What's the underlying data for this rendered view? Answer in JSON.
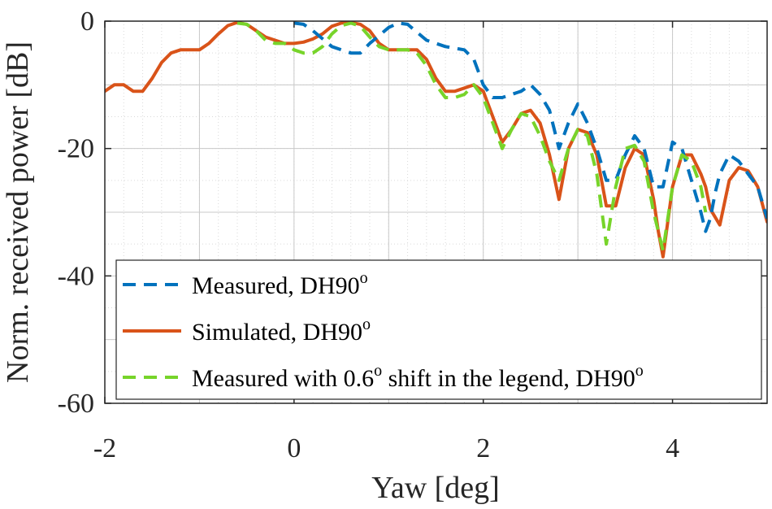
{
  "chart_data": {
    "type": "line",
    "xlabel": "Yaw [deg]",
    "ylabel": "Norm. received power [dB]",
    "xlim": [
      -2,
      5
    ],
    "ylim": [
      -60,
      0
    ],
    "xticks": [
      -2,
      0,
      2,
      4
    ],
    "xtick_labels": [
      "-2",
      "0",
      "2",
      "4"
    ],
    "yticks": [
      0,
      -20,
      -40,
      -60
    ],
    "ytick_labels": [
      "0",
      "-20",
      "-40",
      "-60"
    ],
    "grid": true,
    "minor_grid": true,
    "legend_position": "bottom",
    "series": [
      {
        "name": "Measured, DH90",
        "name_sup": "o",
        "color": "#0072BD",
        "style": "dashed",
        "x": [
          0.0,
          0.1,
          0.2,
          0.4,
          0.6,
          0.7,
          0.8,
          1.0,
          1.1,
          1.2,
          1.4,
          1.6,
          1.8,
          1.9,
          2.0,
          2.1,
          2.2,
          2.3,
          2.4,
          2.5,
          2.6,
          2.7,
          2.8,
          2.9,
          3.0,
          3.1,
          3.2,
          3.3,
          3.4,
          3.5,
          3.6,
          3.7,
          3.8,
          3.9,
          4.0,
          4.1,
          4.2,
          4.3,
          4.35,
          4.4,
          4.45,
          4.5,
          4.6,
          4.7,
          4.8,
          4.9,
          5.0
        ],
        "y": [
          -0.3,
          -0.5,
          -1.5,
          -4,
          -5,
          -5,
          -3.5,
          -1,
          -0.3,
          -0.5,
          -3,
          -4,
          -4.5,
          -6,
          -10,
          -12,
          -12,
          -11.5,
          -11,
          -10,
          -11.5,
          -14,
          -20,
          -16,
          -13,
          -16,
          -20,
          -25,
          -25,
          -21,
          -18,
          -20,
          -26,
          -26,
          -19,
          -20,
          -25,
          -30,
          -33,
          -31,
          -27,
          -24,
          -21,
          -22,
          -24,
          -26,
          -31
        ]
      },
      {
        "name": "Simulated, DH90",
        "name_sup": "o",
        "color": "#D95319",
        "style": "solid",
        "x": [
          -2.0,
          -1.9,
          -1.8,
          -1.7,
          -1.6,
          -1.5,
          -1.4,
          -1.3,
          -1.2,
          -1.1,
          -1.0,
          -0.9,
          -0.8,
          -0.7,
          -0.6,
          -0.5,
          -0.4,
          -0.3,
          -0.2,
          -0.1,
          0.0,
          0.1,
          0.2,
          0.3,
          0.4,
          0.5,
          0.6,
          0.7,
          0.8,
          0.9,
          1.0,
          1.1,
          1.2,
          1.3,
          1.4,
          1.5,
          1.6,
          1.7,
          1.8,
          1.9,
          2.0,
          2.1,
          2.2,
          2.3,
          2.4,
          2.5,
          2.6,
          2.7,
          2.8,
          2.9,
          3.0,
          3.1,
          3.2,
          3.3,
          3.4,
          3.5,
          3.6,
          3.7,
          3.8,
          3.85,
          3.9,
          4.0,
          4.1,
          4.2,
          4.3,
          4.35,
          4.4,
          4.5,
          4.6,
          4.7,
          4.8,
          4.9,
          5.0
        ],
        "y": [
          -11,
          -10,
          -10,
          -11,
          -11,
          -9,
          -6.5,
          -5,
          -4.5,
          -4.5,
          -4.5,
          -3.5,
          -2,
          -0.7,
          -0.2,
          -0.5,
          -1.5,
          -2.5,
          -3,
          -3.5,
          -3.5,
          -3.3,
          -2.8,
          -2,
          -0.8,
          -0.3,
          -0.2,
          -0.5,
          -1.5,
          -3.5,
          -4.5,
          -4.5,
          -4.5,
          -4.5,
          -6,
          -9,
          -11,
          -11,
          -10.5,
          -10,
          -11,
          -15,
          -19,
          -17,
          -14.5,
          -14,
          -16,
          -21,
          -28,
          -20,
          -17,
          -17.5,
          -21,
          -29,
          -29,
          -23,
          -20,
          -21,
          -28,
          -33,
          -37,
          -26,
          -21,
          -21,
          -24,
          -26,
          -29.5,
          -32,
          -25,
          -23,
          -23.5,
          -26,
          -31.5
        ]
      },
      {
        "name": "Measured with 0.6",
        "name_sup": "o",
        "name_suffix": " shift in the legend, DH90",
        "name_suffix_sup": "o",
        "color": "#77D42A",
        "style": "dashed",
        "x": [
          -0.6,
          -0.5,
          -0.4,
          -0.3,
          -0.2,
          -0.1,
          0.0,
          0.1,
          0.2,
          0.3,
          0.4,
          0.5,
          0.6,
          0.7,
          0.8,
          0.9,
          1.0,
          1.1,
          1.2,
          1.3,
          1.4,
          1.5,
          1.6,
          1.7,
          1.8,
          1.9,
          2.0,
          2.1,
          2.2,
          2.3,
          2.4,
          2.5,
          2.6,
          2.7,
          2.8,
          2.9,
          3.0,
          3.1,
          3.2,
          3.3,
          3.4,
          3.5,
          3.6,
          3.7,
          3.8,
          3.9,
          4.0,
          4.1,
          4.2,
          4.3,
          4.35
        ],
        "y": [
          -0.3,
          -0.5,
          -1.5,
          -3,
          -3.5,
          -3.5,
          -4.5,
          -5,
          -5,
          -4,
          -2,
          -0.7,
          -0.3,
          -0.8,
          -2.5,
          -4,
          -4.5,
          -4.5,
          -4.5,
          -5,
          -7,
          -10,
          -12,
          -12,
          -11.5,
          -10,
          -12,
          -16,
          -20,
          -17,
          -14.5,
          -15,
          -18,
          -22,
          -25,
          -20,
          -17,
          -18,
          -24,
          -35,
          -26,
          -20,
          -19.5,
          -22,
          -30,
          -36,
          -26,
          -21,
          -22,
          -26,
          -30
        ]
      }
    ]
  }
}
